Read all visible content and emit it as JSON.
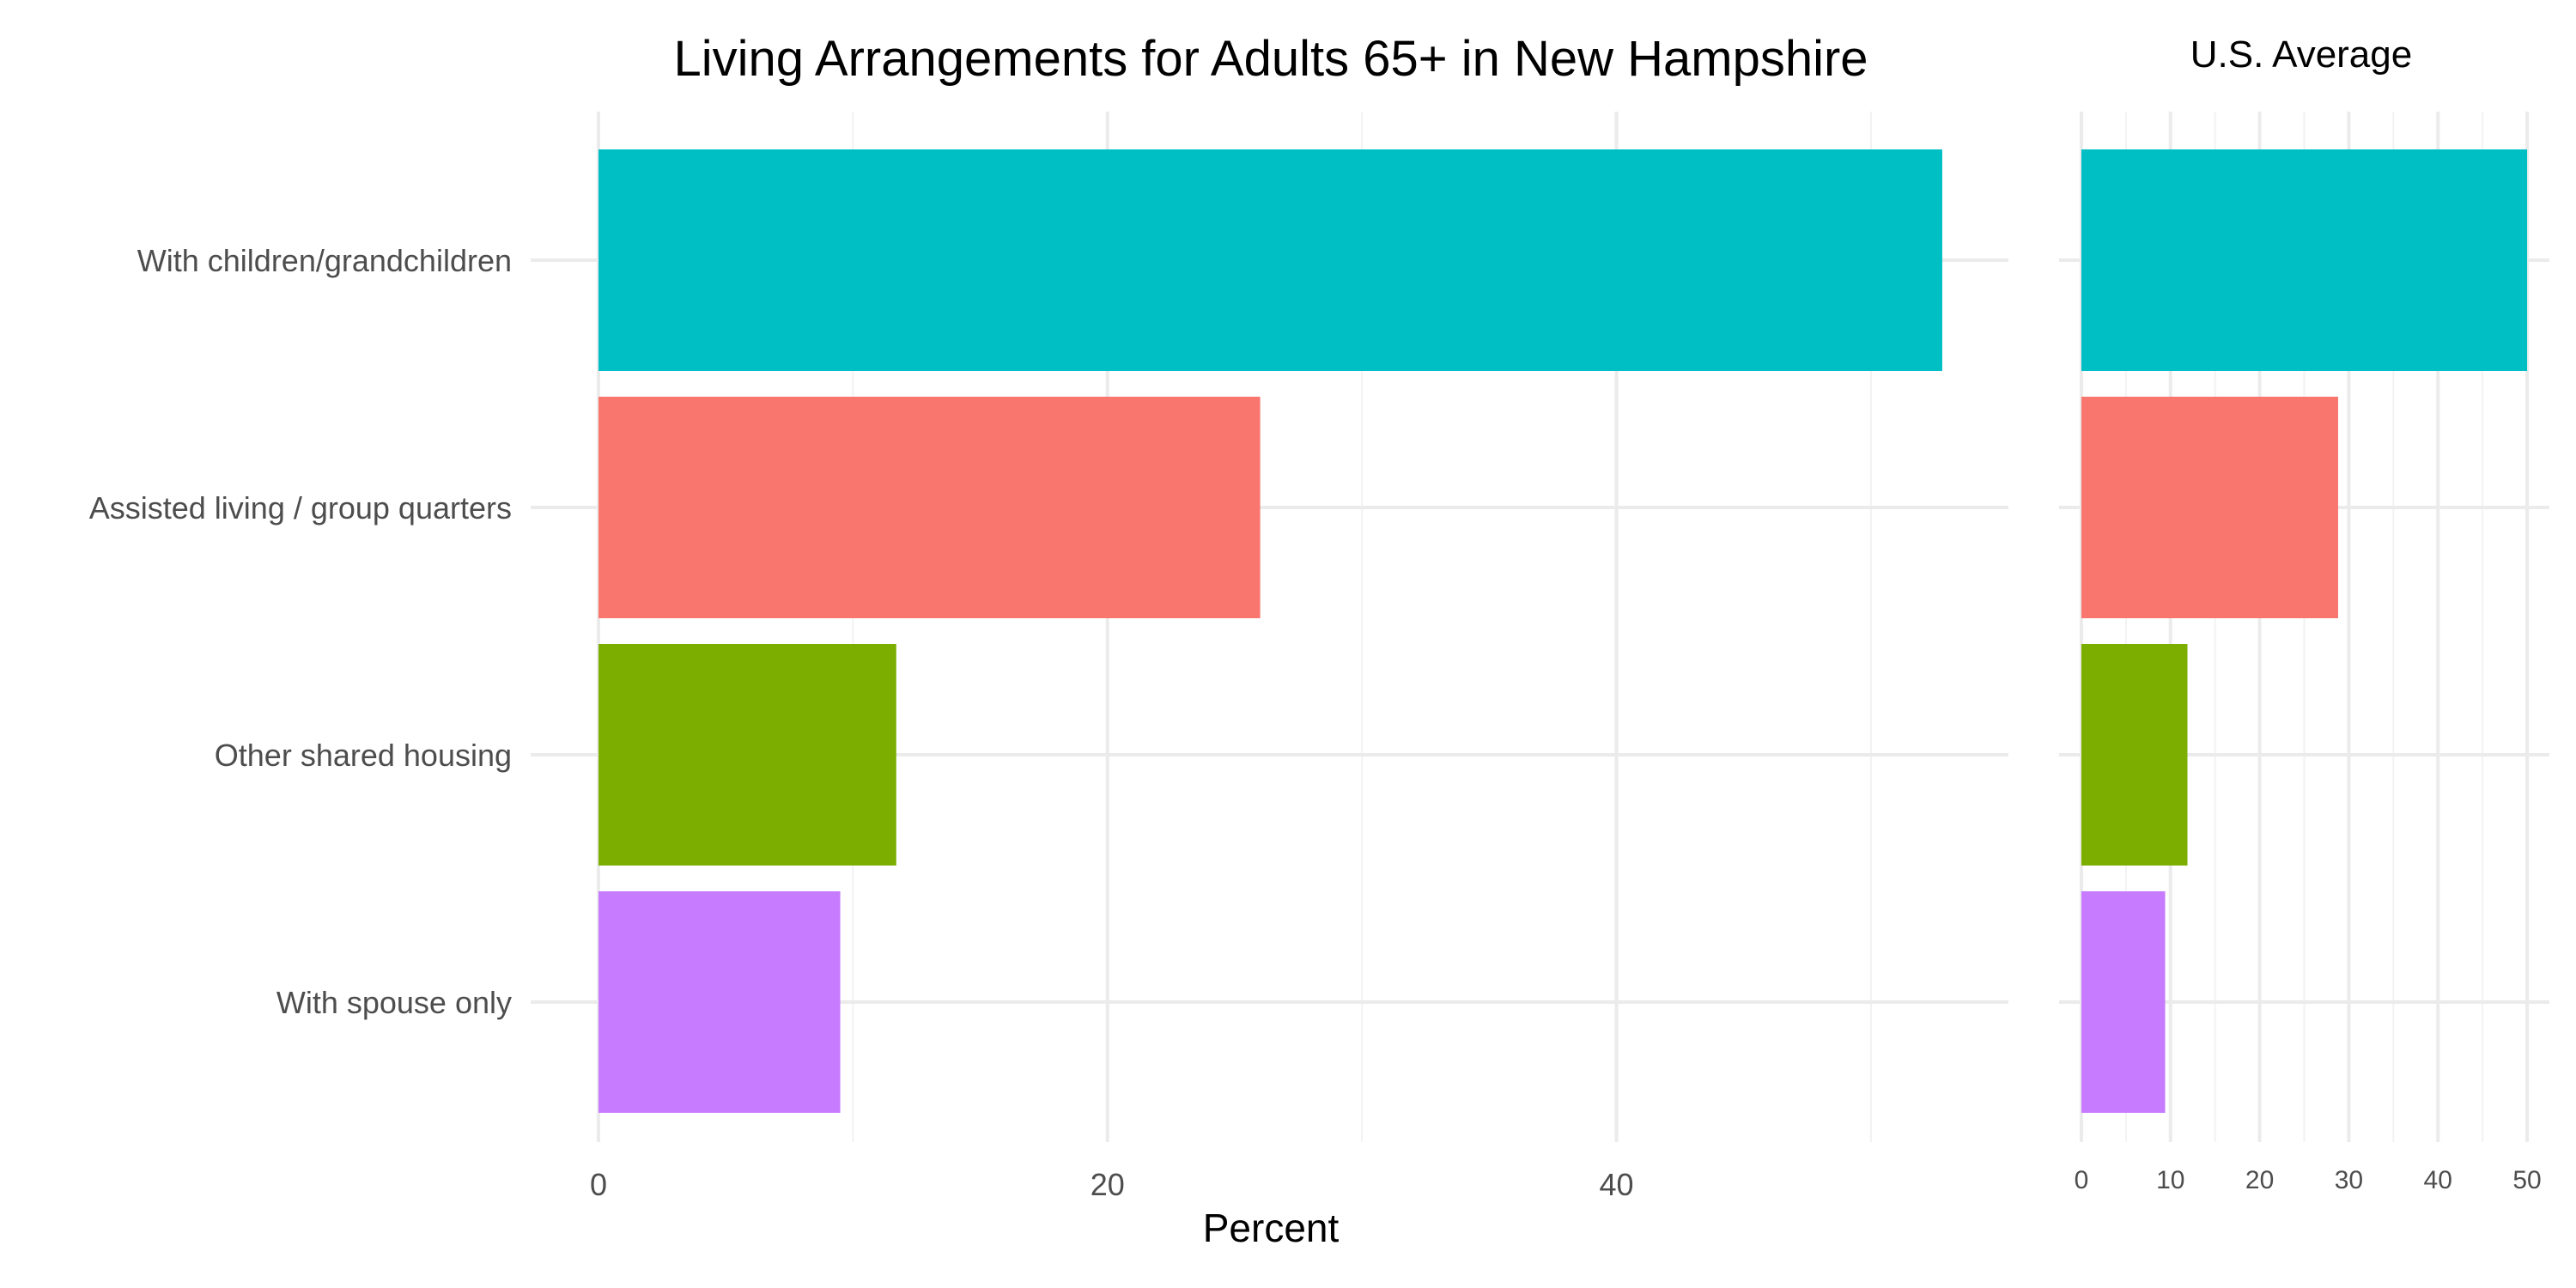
{
  "chart_data": [
    {
      "type": "bar",
      "orientation": "horizontal",
      "title": "Living Arrangements for Adults 65+ in New Hampshire",
      "xlabel": "Percent",
      "ylabel": "",
      "categories": [
        "With children/grandchildren",
        "Assisted living / group quarters",
        "Other shared housing",
        "With spouse only"
      ],
      "values": [
        52.8,
        26.0,
        11.7,
        9.5
      ],
      "colors": [
        "#00BFC4",
        "#F8766D",
        "#7CAE00",
        "#C77CFF"
      ],
      "xlim": [
        0,
        55.4
      ],
      "xticks": [
        0,
        20,
        40
      ],
      "grid": true,
      "legend": "none"
    },
    {
      "type": "bar",
      "orientation": "horizontal",
      "title": "U.S. Average",
      "xlabel": "",
      "ylabel": "",
      "categories": [
        "With children/grandchildren",
        "Assisted living / group quarters",
        "Other shared housing",
        "With spouse only"
      ],
      "values": [
        50.0,
        28.8,
        11.9,
        9.4
      ],
      "colors": [
        "#00BFC4",
        "#F8766D",
        "#7CAE00",
        "#C77CFF"
      ],
      "xlim": [
        -2.5,
        52.5
      ],
      "xticks": [
        0,
        10,
        20,
        30,
        40,
        50
      ],
      "grid": true,
      "legend": "none"
    }
  ]
}
